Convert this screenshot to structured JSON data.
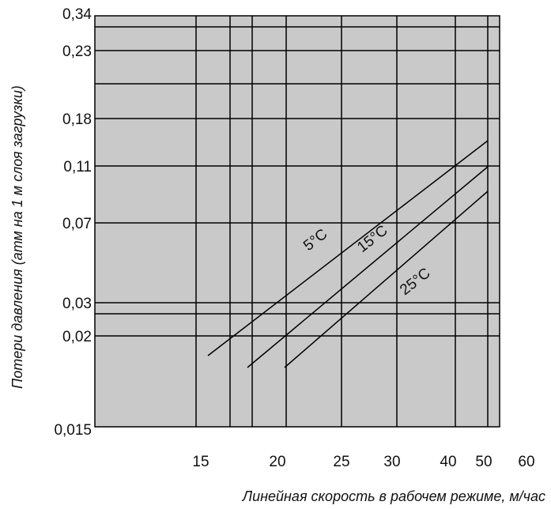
{
  "chart_data": {
    "type": "line",
    "title": "",
    "xlabel": "Линейная скорость в рабочем режиме, м/час",
    "ylabel": "Потери давления (атм на 1 м слоя загрузки)",
    "x_ticks": [
      "15",
      "20",
      "25",
      "30",
      "40",
      "50",
      "60"
    ],
    "y_ticks": [
      "0,34",
      "0,23",
      "0,18",
      "0,11",
      "0,07",
      "0,03",
      "0,02",
      "0,015"
    ],
    "grid": true,
    "background": "#c9c9c9",
    "series": [
      {
        "name": "5°C",
        "x": [
          "15",
          "50"
        ],
        "y": [
          "<0,02",
          ">0,11"
        ]
      },
      {
        "name": "15°C",
        "x": [
          "20",
          "50"
        ],
        "y": [
          "<0,02",
          ">0,07"
        ]
      },
      {
        "name": "25°C",
        "x": [
          "20",
          "50"
        ],
        "y": [
          "<0,02",
          ">0,07"
        ]
      }
    ]
  }
}
